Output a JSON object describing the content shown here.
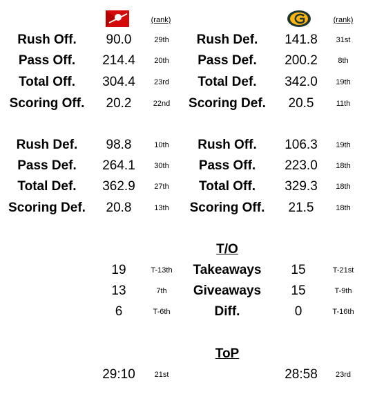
{
  "header": {
    "rank_left": "(rank)",
    "rank_right": "(rank)"
  },
  "section1": {
    "rows": [
      [
        "Rush Off.",
        "90.0",
        "29th",
        "Rush Def.",
        "141.8",
        "31st"
      ],
      [
        "Pass Off.",
        "214.4",
        "20th",
        "Pass Def.",
        "200.2",
        "8th"
      ],
      [
        "Total Off.",
        "304.4",
        "23rd",
        "Total Def.",
        "342.0",
        "19th"
      ],
      [
        "Scoring Off.",
        "20.2",
        "22nd",
        "Scoring Def.",
        "20.5",
        "11th"
      ]
    ]
  },
  "section2": {
    "rows": [
      [
        "Rush Def.",
        "98.8",
        "10th",
        "Rush Off.",
        "106.3",
        "19th"
      ],
      [
        "Pass Def.",
        "264.1",
        "30th",
        "Pass Off.",
        "223.0",
        "18th"
      ],
      [
        "Total Def.",
        "362.9",
        "27th",
        "Total Off.",
        "329.3",
        "18th"
      ],
      [
        "Scoring Def.",
        "20.8",
        "13th",
        "Scoring Off.",
        "21.5",
        "18th"
      ]
    ]
  },
  "turnovers": {
    "title": "T/O",
    "rows": [
      [
        "19",
        "T-13th",
        "Takeaways",
        "15",
        "T-21st"
      ],
      [
        "13",
        "7th",
        "Giveaways",
        "15",
        "T-9th"
      ],
      [
        "6",
        "T-6th",
        "Diff.",
        "0",
        "T-16th"
      ]
    ]
  },
  "top": {
    "title": "ToP",
    "rows": [
      [
        "29:10",
        "21st",
        "28:58",
        "23rd"
      ]
    ]
  }
}
